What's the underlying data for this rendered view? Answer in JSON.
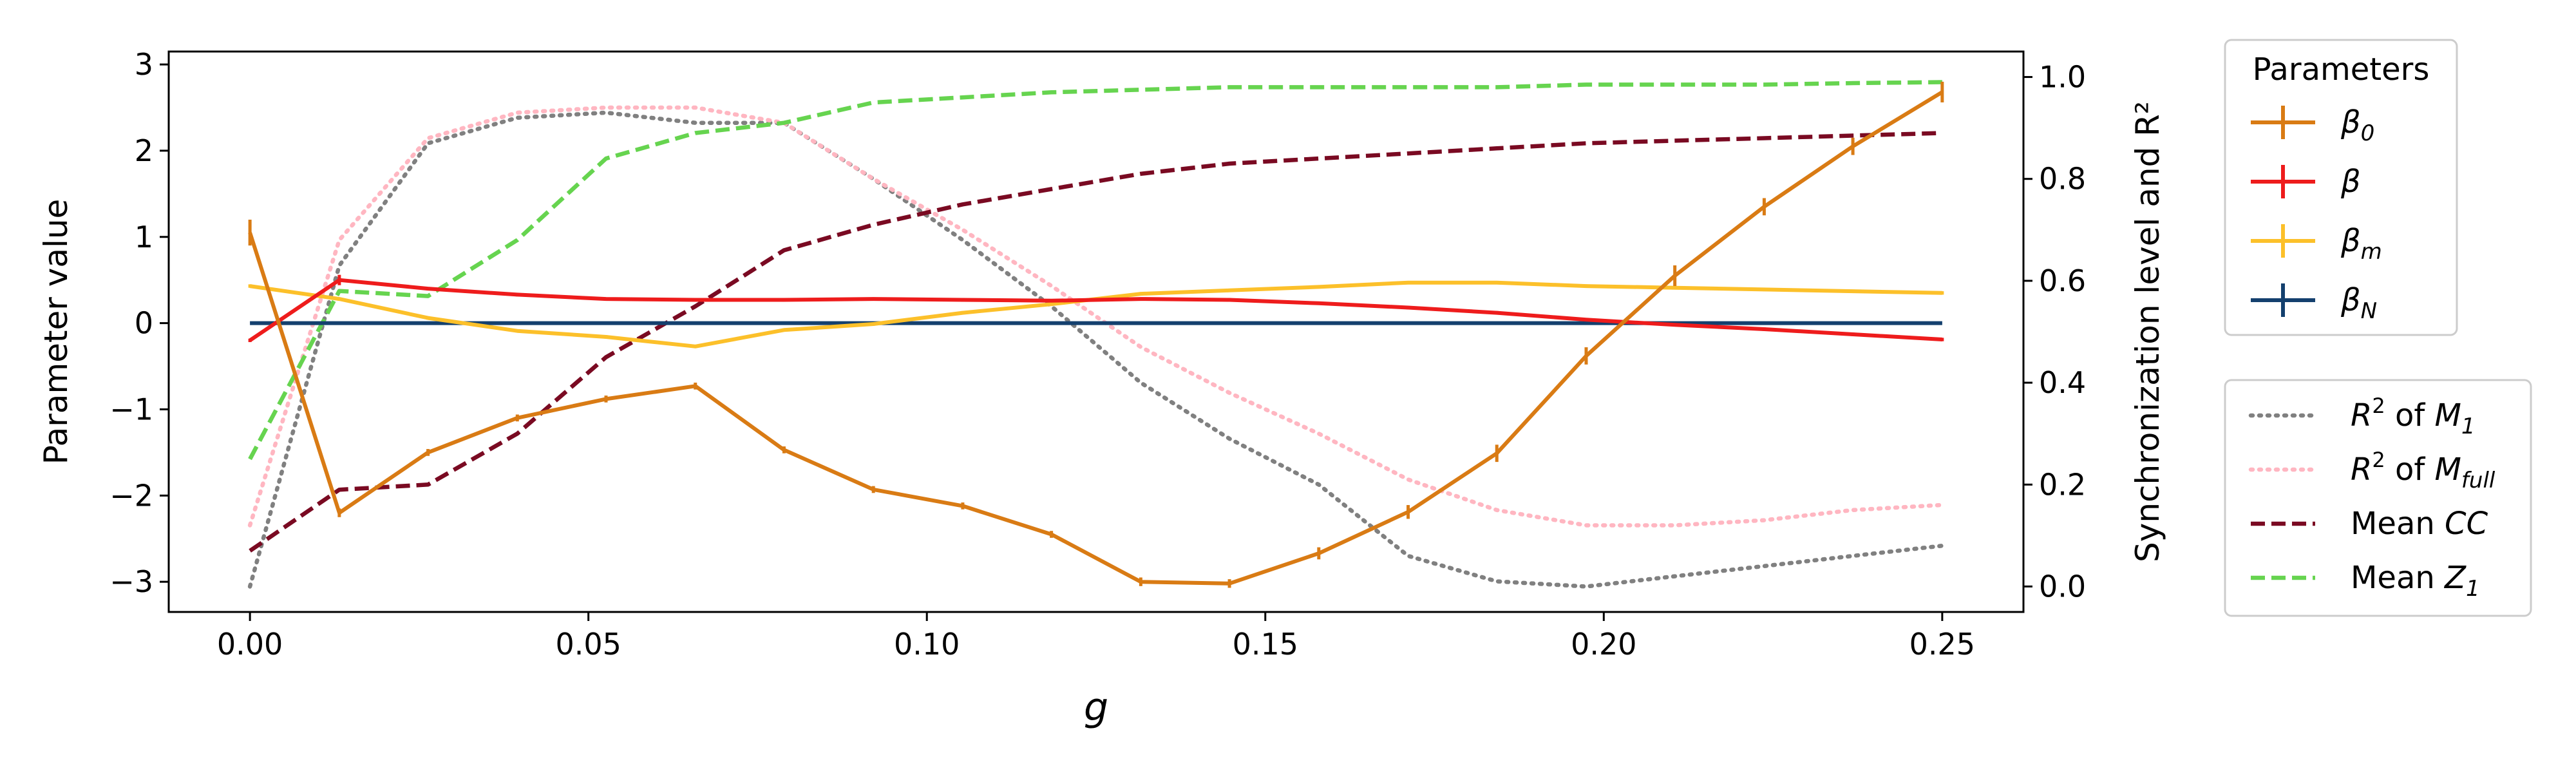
{
  "chart_data": {
    "type": "line",
    "xlabel": "g",
    "ylabel_left": "Parameter value",
    "ylabel_right": "Synchronization level and R²",
    "xlim": [
      -0.012,
      0.262
    ],
    "ylim_left": [
      -3.35,
      3.15
    ],
    "ylim_right": [
      -0.05,
      1.05
    ],
    "x_ticks": [
      0.0,
      0.05,
      0.1,
      0.15,
      0.2,
      0.25
    ],
    "x_tick_labels": [
      "0.00",
      "0.05",
      "0.10",
      "0.15",
      "0.20",
      "0.25"
    ],
    "y_left_ticks": [
      -3,
      -2,
      -1,
      0,
      1,
      2,
      3
    ],
    "y_right_ticks": [
      0.0,
      0.2,
      0.4,
      0.6,
      0.8,
      1.0
    ],
    "y_right_tick_labels": [
      "0.0",
      "0.2",
      "0.4",
      "0.6",
      "0.8",
      "1.0"
    ],
    "grid": false,
    "x": [
      0.0,
      0.0132,
      0.0263,
      0.0395,
      0.0526,
      0.0658,
      0.0789,
      0.0921,
      0.1053,
      0.1184,
      0.1316,
      0.1447,
      0.1579,
      0.1711,
      0.1842,
      0.1974,
      0.2105,
      0.2237,
      0.2368,
      0.25
    ],
    "legend_parameters": {
      "title": "Parameters",
      "placement": "upper right, outside plot",
      "entries": [
        {
          "base": "β",
          "sub": "0",
          "color": "#d97b14"
        },
        {
          "base": "β",
          "sub": "",
          "color": "#ee1c1c"
        },
        {
          "base": "β",
          "sub": "m",
          "color": "#fcc02a"
        },
        {
          "base": "β",
          "sub": "N",
          "color": "#14406e"
        }
      ]
    },
    "legend_sync": {
      "placement": "lower right, outside plot",
      "entries": [
        {
          "prefix": "R",
          "sup": "2",
          "mid": " of ",
          "var": "M",
          "sub": "1",
          "color": "#808080",
          "style": "dotted"
        },
        {
          "prefix": "R",
          "sup": "2",
          "mid": " of ",
          "var": "M",
          "sub": "full",
          "color": "#ffb6c1",
          "style": "dotted"
        },
        {
          "prefix": "Mean ",
          "sup": "",
          "mid": "",
          "var": "CC",
          "sub": "",
          "color": "#7a0a22",
          "style": "dashed"
        },
        {
          "prefix": "Mean ",
          "sup": "",
          "mid": "",
          "var": "Z",
          "sub": "1",
          "color": "#66d44f",
          "style": "dashed"
        }
      ]
    },
    "series": [
      {
        "key": "beta0",
        "axis": "left",
        "color": "#d97b14",
        "style": "solid",
        "errorbars": true,
        "values": [
          1.05,
          -2.2,
          -1.5,
          -1.1,
          -0.88,
          -0.73,
          -1.47,
          -1.93,
          -2.12,
          -2.45,
          -3.0,
          -3.02,
          -2.67,
          -2.19,
          -1.51,
          -0.38,
          0.55,
          1.35,
          2.05,
          2.68
        ],
        "errors": [
          0.15,
          0.05,
          0.04,
          0.04,
          0.04,
          0.04,
          0.04,
          0.04,
          0.04,
          0.04,
          0.05,
          0.05,
          0.07,
          0.08,
          0.1,
          0.1,
          0.12,
          0.1,
          0.1,
          0.12
        ]
      },
      {
        "key": "beta",
        "axis": "left",
        "color": "#ee1c1c",
        "style": "solid",
        "errorbars": true,
        "values": [
          -0.2,
          0.5,
          0.4,
          0.33,
          0.28,
          0.27,
          0.27,
          0.28,
          0.27,
          0.26,
          0.28,
          0.27,
          0.23,
          0.18,
          0.12,
          0.04,
          -0.02,
          -0.07,
          -0.13,
          -0.19
        ],
        "errors": [
          0.02,
          0.06,
          0.02,
          0.02,
          0.02,
          0.02,
          0.02,
          0.02,
          0.02,
          0.02,
          0.02,
          0.02,
          0.02,
          0.02,
          0.02,
          0.02,
          0.02,
          0.02,
          0.02,
          0.02
        ]
      },
      {
        "key": "betam",
        "axis": "left",
        "color": "#fcc02a",
        "style": "solid",
        "errorbars": true,
        "values": [
          0.43,
          0.28,
          0.06,
          -0.09,
          -0.16,
          -0.27,
          -0.08,
          -0.01,
          0.12,
          0.22,
          0.34,
          0.38,
          0.42,
          0.47,
          0.47,
          0.43,
          0.41,
          0.39,
          0.37,
          0.35
        ],
        "errors": [
          0.02,
          0.02,
          0.02,
          0.02,
          0.02,
          0.02,
          0.02,
          0.02,
          0.02,
          0.02,
          0.02,
          0.02,
          0.02,
          0.02,
          0.02,
          0.02,
          0.02,
          0.02,
          0.02,
          0.02
        ]
      },
      {
        "key": "betaN",
        "axis": "left",
        "color": "#14406e",
        "style": "solid",
        "errorbars": false,
        "values": [
          0,
          0,
          0,
          0,
          0,
          0,
          0,
          0,
          0,
          0,
          0,
          0,
          0,
          0,
          0,
          0,
          0,
          0,
          0,
          0
        ]
      },
      {
        "key": "r2_m1",
        "axis": "right",
        "color": "#808080",
        "style": "dotted",
        "values": [
          0.0,
          0.63,
          0.87,
          0.92,
          0.93,
          0.91,
          0.91,
          0.8,
          0.68,
          0.55,
          0.4,
          0.29,
          0.2,
          0.06,
          0.01,
          0.0,
          0.02,
          0.04,
          0.06,
          0.08
        ]
      },
      {
        "key": "r2_mfull",
        "axis": "right",
        "color": "#ffb6c1",
        "style": "dotted",
        "values": [
          0.12,
          0.68,
          0.88,
          0.93,
          0.94,
          0.94,
          0.91,
          0.8,
          0.7,
          0.59,
          0.47,
          0.38,
          0.3,
          0.21,
          0.15,
          0.12,
          0.12,
          0.13,
          0.15,
          0.16
        ]
      },
      {
        "key": "mean_cc",
        "axis": "right",
        "color": "#7a0a22",
        "style": "dashed",
        "values": [
          0.07,
          0.19,
          0.2,
          0.3,
          0.45,
          0.55,
          0.66,
          0.71,
          0.75,
          0.78,
          0.81,
          0.83,
          0.84,
          0.85,
          0.86,
          0.87,
          0.875,
          0.88,
          0.885,
          0.89
        ]
      },
      {
        "key": "mean_z1",
        "axis": "right",
        "color": "#66d44f",
        "style": "dashed",
        "values": [
          0.25,
          0.58,
          0.57,
          0.68,
          0.84,
          0.89,
          0.91,
          0.95,
          0.96,
          0.97,
          0.975,
          0.98,
          0.98,
          0.98,
          0.98,
          0.985,
          0.985,
          0.985,
          0.988,
          0.99
        ]
      }
    ]
  }
}
